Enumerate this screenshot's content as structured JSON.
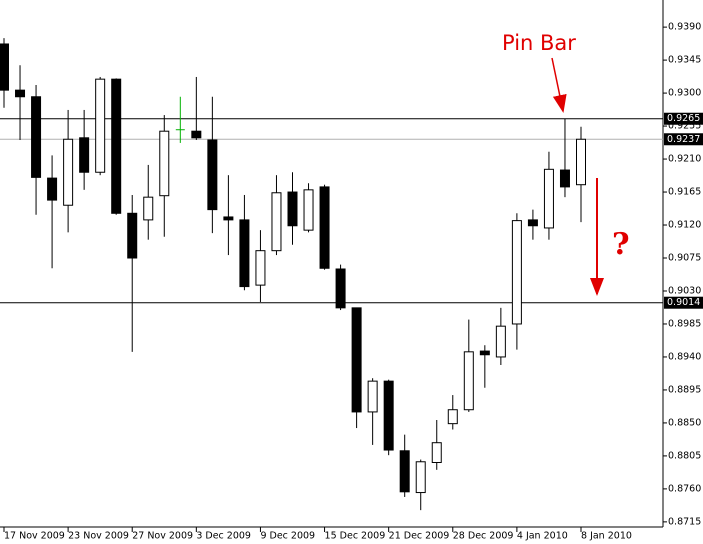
{
  "chart_data": {
    "type": "candlestick",
    "categories": [
      "17 Nov 2009",
      null,
      null,
      null,
      "23 Nov 2009",
      null,
      null,
      null,
      "27 Nov 2009",
      null,
      null,
      null,
      "3 Dec 2009",
      null,
      null,
      null,
      "9 Dec 2009",
      null,
      null,
      null,
      "15 Dec 2009",
      null,
      null,
      null,
      "21 Dec 2009",
      null,
      null,
      null,
      "28 Dec 2009",
      null,
      null,
      null,
      "4 Jan 2010",
      null,
      null,
      null,
      "8 Jan 2010"
    ],
    "open": [
      0.9367,
      0.9304,
      0.9295,
      0.9184,
      0.9147,
      0.9239,
      0.9192,
      0.9319,
      0.9136,
      0.9127,
      0.916,
      0.925,
      0.9248,
      0.9236,
      0.9131,
      0.9127,
      0.9038,
      0.9085,
      0.9165,
      0.9113,
      0.9172,
      0.906,
      0.9007,
      0.8865,
      0.8907,
      0.8812,
      0.8755,
      0.8796,
      0.8849,
      0.8868,
      0.8948,
      0.894,
      0.8985,
      0.9127,
      0.9116,
      0.9195,
      0.9175
    ],
    "high": [
      0.9375,
      0.9338,
      0.9311,
      0.9215,
      0.9277,
      0.9277,
      0.9322,
      0.932,
      0.9161,
      0.9202,
      0.927,
      0.9295,
      0.9322,
      0.9295,
      0.9188,
      0.9161,
      0.9113,
      0.9188,
      0.9192,
      0.9177,
      0.9175,
      0.9066,
      0.9007,
      0.8911,
      0.8909,
      0.8834,
      0.88,
      0.8854,
      0.8888,
      0.8991,
      0.8956,
      0.9007,
      0.9136,
      0.9141,
      0.922,
      0.9265,
      0.9254
    ],
    "low": [
      0.928,
      0.9236,
      0.9134,
      0.9061,
      0.911,
      0.9168,
      0.9188,
      0.9134,
      0.8947,
      0.91,
      0.9104,
      0.9232,
      0.9236,
      0.9109,
      0.9079,
      0.9031,
      0.9015,
      0.9079,
      0.9093,
      0.911,
      0.9059,
      0.9004,
      0.8843,
      0.882,
      0.8806,
      0.8749,
      0.8731,
      0.8786,
      0.8841,
      0.8865,
      0.8898,
      0.8929,
      0.895,
      0.91,
      0.91,
      0.9158,
      0.9124
    ],
    "close": [
      0.9304,
      0.9295,
      0.9185,
      0.9154,
      0.9237,
      0.9192,
      0.9319,
      0.9136,
      0.9075,
      0.9158,
      0.9248,
      0.925,
      0.9239,
      0.9141,
      0.9127,
      0.9036,
      0.9085,
      0.9164,
      0.9119,
      0.9168,
      0.9061,
      0.9007,
      0.8865,
      0.8907,
      0.8813,
      0.8756,
      0.8797,
      0.8823,
      0.8868,
      0.8947,
      0.8943,
      0.8982,
      0.9126,
      0.9119,
      0.9196,
      0.9172,
      0.9237
    ],
    "up_color": "#ffffff",
    "down_color": "#000000",
    "doji_color": "#00b000",
    "ylim": [
      0.8708,
      0.9427
    ],
    "yticks": [
      {
        "value": 0.939,
        "label": "0.9390"
      },
      0.9345,
      {
        "value": 0.93,
        "label": "0.9300"
      },
      0.9255,
      {
        "value": 0.921,
        "label": "0.9210"
      },
      0.9165,
      {
        "value": 0.912,
        "label": "0.9120"
      },
      0.9075,
      {
        "value": 0.903,
        "label": "0.9030"
      },
      0.8985,
      {
        "value": 0.894,
        "label": "0.8940"
      },
      0.8895,
      {
        "value": 0.885,
        "label": "0.8850"
      },
      0.8805,
      {
        "value": 0.876,
        "label": "0.8760"
      },
      0.8715
    ],
    "levels": [
      0.9265,
      0.9014
    ],
    "current_price": 0.9237,
    "annotations": [
      "Pin Bar",
      "?"
    ]
  }
}
